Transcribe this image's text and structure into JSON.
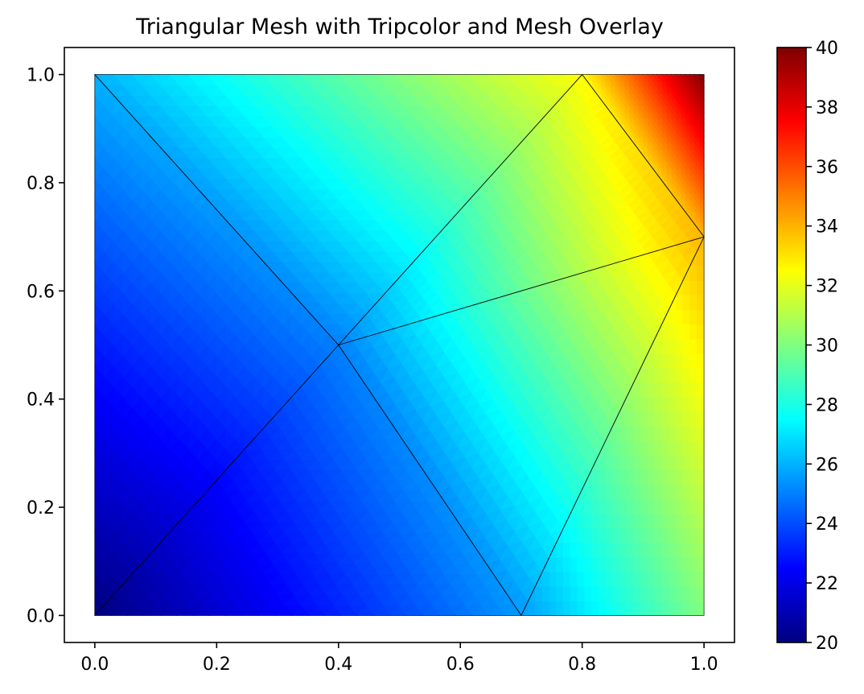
{
  "chart_data": {
    "type": "tripcolor",
    "title": "Triangular Mesh with Tripcolor and Mesh Overlay",
    "xlabel": "",
    "ylabel": "",
    "xlim": [
      -0.05,
      1.05
    ],
    "ylim": [
      -0.05,
      1.05
    ],
    "x_ticks": [
      0.0,
      0.2,
      0.4,
      0.6,
      0.8,
      1.0
    ],
    "x_tick_labels": [
      "0.0",
      "0.2",
      "0.4",
      "0.6",
      "0.8",
      "1.0"
    ],
    "y_ticks": [
      0.0,
      0.2,
      0.4,
      0.6,
      0.8,
      1.0
    ],
    "y_tick_labels": [
      "0.0",
      "0.2",
      "0.4",
      "0.6",
      "0.8",
      "1.0"
    ],
    "colormap": "jet",
    "shading": "gouraud",
    "grid": false,
    "mesh_color": "#000000",
    "nodes": [
      {
        "x": 0.0,
        "y": 0.0,
        "value": 20
      },
      {
        "x": 0.7,
        "y": 0.0,
        "value": 25.5
      },
      {
        "x": 1.0,
        "y": 0.0,
        "value": 30
      },
      {
        "x": 1.0,
        "y": 0.7,
        "value": 34
      },
      {
        "x": 1.0,
        "y": 1.0,
        "value": 40
      },
      {
        "x": 0.8,
        "y": 1.0,
        "value": 32.5
      },
      {
        "x": 0.0,
        "y": 1.0,
        "value": 26
      },
      {
        "x": 0.4,
        "y": 0.5,
        "value": 25
      }
    ],
    "triangles": [
      [
        0,
        1,
        7
      ],
      [
        1,
        3,
        7
      ],
      [
        1,
        2,
        3
      ],
      [
        7,
        3,
        5
      ],
      [
        3,
        4,
        5
      ],
      [
        7,
        5,
        6
      ],
      [
        0,
        7,
        6
      ]
    ],
    "colorbar": {
      "min": 20,
      "max": 40,
      "ticks": [
        20,
        22,
        24,
        26,
        28,
        30,
        32,
        34,
        36,
        38,
        40
      ],
      "tick_labels": [
        "20",
        "22",
        "24",
        "26",
        "28",
        "30",
        "32",
        "34",
        "36",
        "38",
        "40"
      ]
    }
  }
}
